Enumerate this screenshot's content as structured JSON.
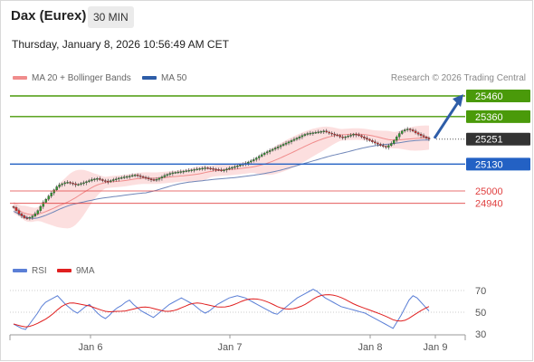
{
  "header": {
    "instrument": "Dax (Eurex)",
    "timeframe": "30 MIN"
  },
  "datetime": "Thursday, January 8, 2026 10:56:49 AM CET",
  "legend": {
    "bollinger_label": "MA 20 + Bollinger Bands",
    "ma50_label": "MA 50",
    "bollinger_color": "#f08c8c",
    "ma50_color": "#2e5da8"
  },
  "copyright": "Research © 2026 Trading Central",
  "levels": [
    {
      "value": 25460,
      "label": "25460",
      "kind": "resistance-target",
      "color": "#4a9a0a"
    },
    {
      "value": 25360,
      "label": "25360",
      "kind": "resistance",
      "color": "#4a9a0a"
    },
    {
      "value": 25251,
      "label": "25251",
      "kind": "last-price",
      "color": "#333333"
    },
    {
      "value": 25130,
      "label": "25130",
      "kind": "pivot",
      "color": "#2361c4"
    },
    {
      "value": 25000,
      "label": "25000",
      "kind": "support",
      "color": "#e04040"
    },
    {
      "value": 24940,
      "label": "24940",
      "kind": "support",
      "color": "#e04040"
    }
  ],
  "rsi_legend": {
    "rsi_label": "RSI",
    "ma_label": "9MA",
    "rsi_color": "#5b7fd6",
    "ma_color": "#e02020"
  },
  "rsi_ticks": [
    "70",
    "50",
    "30"
  ],
  "x_labels": [
    "Jan 6",
    "Jan 7",
    "Jan 8",
    "Jan 9"
  ],
  "chart_data": {
    "type": "candlestick",
    "price_range": [
      24780,
      25480
    ],
    "closes": [
      24920,
      24905,
      24890,
      24880,
      24870,
      24868,
      24872,
      24878,
      24890,
      24905,
      24925,
      24945,
      24960,
      24975,
      24990,
      25005,
      25020,
      25030,
      25035,
      25040,
      25042,
      25038,
      25035,
      25030,
      25032,
      25036,
      25040,
      25045,
      25050,
      25055,
      25058,
      25060,
      25055,
      25050,
      25048,
      25045,
      25050,
      25055,
      25058,
      25062,
      25065,
      25068,
      25070,
      25072,
      25075,
      25078,
      25074,
      25070,
      25066,
      25062,
      25058,
      25055,
      25052,
      25056,
      25062,
      25068,
      25075,
      25080,
      25085,
      25088,
      25090,
      25092,
      25094,
      25096,
      25098,
      25100,
      25102,
      25104,
      25106,
      25108,
      25110,
      25112,
      25110,
      25108,
      25106,
      25104,
      25102,
      25100,
      25102,
      25106,
      25110,
      25114,
      25118,
      25122,
      25126,
      25130,
      25134,
      25140,
      25146,
      25152,
      25160,
      25168,
      25176,
      25184,
      25190,
      25196,
      25202,
      25208,
      25214,
      25220,
      25226,
      25232,
      25238,
      25244,
      25250,
      25256,
      25262,
      25268,
      25274,
      25278,
      25280,
      25282,
      25284,
      25286,
      25288,
      25290,
      25285,
      25280,
      25276,
      25272,
      25268,
      25262,
      25258,
      25262,
      25266,
      25270,
      25275,
      25272,
      25268,
      25262,
      25256,
      25250,
      25244,
      25238,
      25232,
      25226,
      25220,
      25216,
      25212,
      25220,
      25230,
      25245,
      25262,
      25278,
      25290,
      25296,
      25300,
      25296,
      25290,
      25282,
      25275,
      25268,
      25262,
      25256,
      25251
    ],
    "rsi": [
      40,
      38,
      36,
      35,
      40,
      45,
      50,
      56,
      60,
      62,
      64,
      66,
      62,
      58,
      55,
      52,
      50,
      53,
      56,
      58,
      54,
      50,
      47,
      45,
      48,
      52,
      55,
      57,
      60,
      62,
      58,
      55,
      52,
      50,
      48,
      46,
      49,
      52,
      55,
      58,
      60,
      62,
      64,
      62,
      60,
      58,
      55,
      52,
      50,
      52,
      55,
      58,
      60,
      62,
      64,
      65,
      66,
      65,
      64,
      62,
      60,
      58,
      56,
      54,
      52,
      50,
      49,
      52,
      55,
      58,
      61,
      64,
      66,
      68,
      70,
      72,
      70,
      67,
      64,
      62,
      60,
      58,
      56,
      55,
      54,
      53,
      52,
      51,
      50,
      48,
      46,
      44,
      42,
      40,
      38,
      36,
      42,
      48,
      55,
      62,
      66,
      64,
      60,
      56,
      52
    ]
  }
}
